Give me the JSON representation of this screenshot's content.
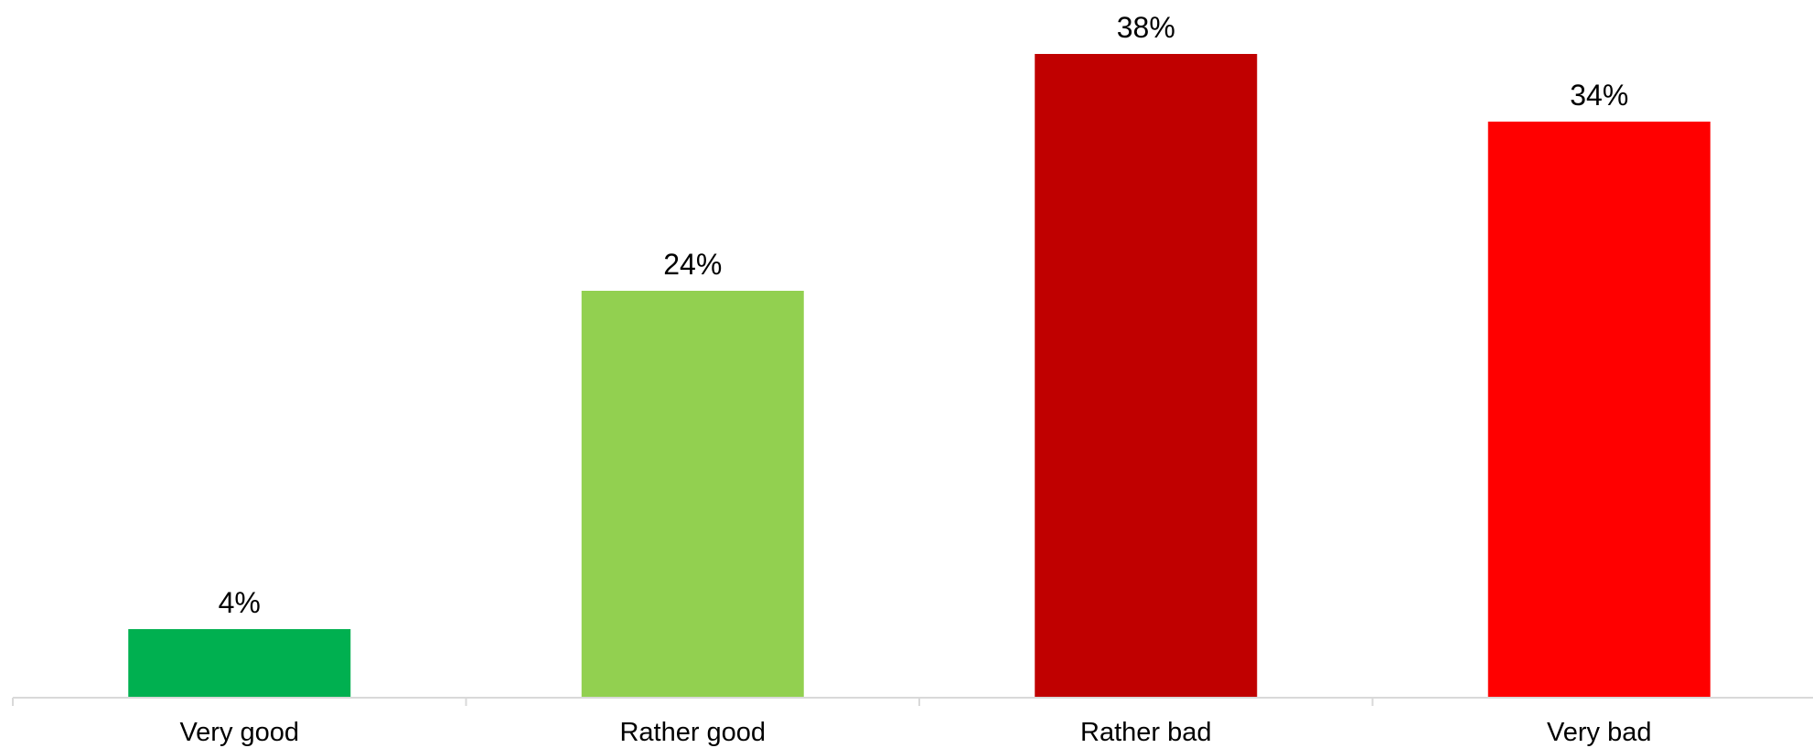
{
  "chart_data": {
    "type": "bar",
    "categories": [
      "Very good",
      "Rather good",
      "Rather bad",
      "Very bad"
    ],
    "values": [
      4,
      24,
      38,
      34
    ],
    "value_labels": [
      "4%",
      "24%",
      "38%",
      "34%"
    ],
    "colors": [
      "#00b050",
      "#92d050",
      "#c00000",
      "#ff0000"
    ],
    "title": "",
    "xlabel": "",
    "ylabel": "",
    "ylim": [
      0,
      38
    ],
    "grid": false,
    "legend": "none"
  }
}
